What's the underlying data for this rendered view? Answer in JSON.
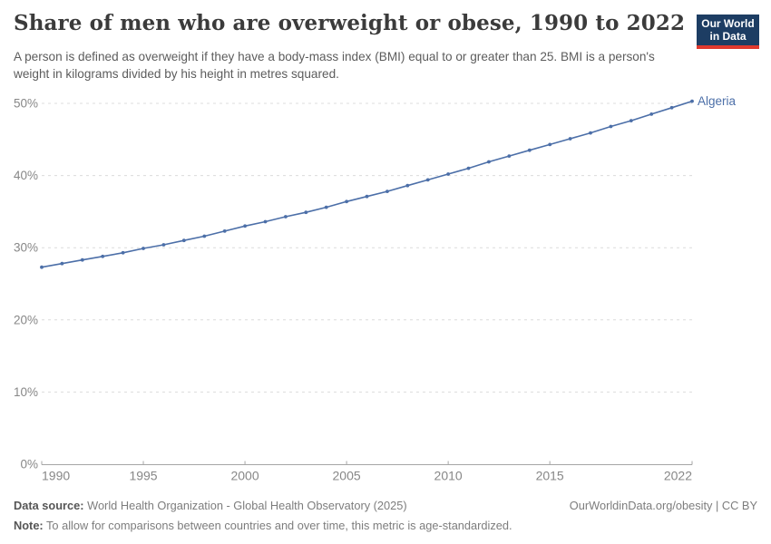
{
  "header": {
    "title": "Share of men who are overweight or obese, 1990 to 2022",
    "subtitle": "A person is defined as overweight if they have a body-mass index (BMI) equal to or greater than 25. BMI is a person's weight in kilograms divided by his height in metres squared."
  },
  "logo": {
    "line1": "Our World",
    "line2": "in Data",
    "bg_color": "#1d3d63",
    "accent_color": "#e0392e"
  },
  "chart_data": {
    "type": "line",
    "title": "Share of men who are overweight or obese, 1990 to 2022",
    "xlabel": "",
    "ylabel": "",
    "x": [
      1990,
      1991,
      1992,
      1993,
      1994,
      1995,
      1996,
      1997,
      1998,
      1999,
      2000,
      2001,
      2002,
      2003,
      2004,
      2005,
      2006,
      2007,
      2008,
      2009,
      2010,
      2011,
      2012,
      2013,
      2014,
      2015,
      2016,
      2017,
      2018,
      2019,
      2020,
      2021,
      2022
    ],
    "series": [
      {
        "name": "Algeria",
        "values": [
          27.3,
          27.8,
          28.3,
          28.8,
          29.3,
          29.9,
          30.4,
          31.0,
          31.6,
          32.3,
          33.0,
          33.6,
          34.3,
          34.9,
          35.6,
          36.4,
          37.1,
          37.8,
          38.6,
          39.4,
          40.2,
          41.0,
          41.9,
          42.7,
          43.5,
          44.3,
          45.1,
          45.9,
          46.8,
          47.6,
          48.5,
          49.4,
          50.3
        ]
      }
    ],
    "xlim": [
      1990,
      2022
    ],
    "ylim": [
      0,
      50
    ],
    "xticks": [
      1990,
      1995,
      2000,
      2005,
      2010,
      2015,
      2022
    ],
    "yticks": [
      0,
      10,
      20,
      30,
      40,
      50
    ],
    "ytick_suffix": "%",
    "grid": "horizontal-dashed",
    "legend_position": "end-of-line-label",
    "end_label": "Algeria",
    "markers": true
  },
  "footer": {
    "data_source_label": "Data source:",
    "data_source": "World Health Organization - Global Health Observatory (2025)",
    "note_label": "Note:",
    "note": "To allow for comparisons between countries and over time, this metric is age-standardized.",
    "link_text": "OurWorldinData.org/obesity | CC BY"
  },
  "colors": {
    "line": "#4c6fa8",
    "grid": "#dcdcdc",
    "axis": "#a6a6a6",
    "tick_label": "#878787",
    "title": "#3b3b3b",
    "subtitle": "#5c5c5c",
    "footer": "#7d7d7d"
  }
}
